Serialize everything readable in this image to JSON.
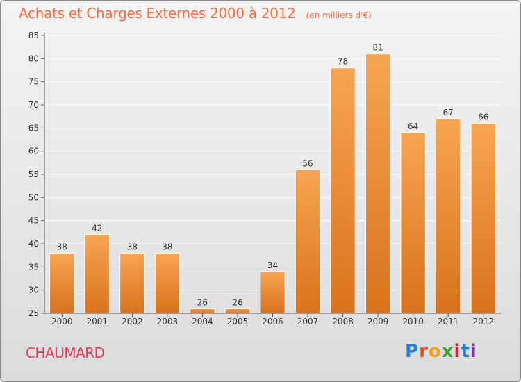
{
  "header": {
    "title": "Achats et Charges Externes 2000 à 2012",
    "unit": "(en milliers d'€)"
  },
  "footer": {
    "commune": "CHAUMARD",
    "logo_letters": [
      "P",
      "r",
      "o",
      "x",
      "i",
      "t",
      "i"
    ],
    "logo_colors": [
      "#2a7fc9",
      "#e8501f",
      "#f2a21c",
      "#3aa635",
      "#d6213a",
      "#2a7fc9",
      "#7a3aa0"
    ]
  },
  "colors": {
    "title": "#ff6a3d",
    "commune": "#e2385a",
    "bar_top": "#f7a552",
    "bar_bottom": "#d9721c",
    "grid": "#ffffff",
    "axis": "#555555"
  },
  "chart_data": {
    "type": "bar",
    "title": "Achats et Charges Externes 2000 à 2012",
    "xlabel": "",
    "ylabel": "",
    "categories": [
      "2000",
      "2001",
      "2002",
      "2003",
      "2004",
      "2005",
      "2006",
      "2007",
      "2008",
      "2009",
      "2010",
      "2011",
      "2012"
    ],
    "values": [
      38,
      42,
      38,
      38,
      26,
      26,
      34,
      56,
      78,
      81,
      64,
      67,
      66
    ],
    "ylim": [
      25,
      85
    ],
    "yticks": [
      25,
      30,
      35,
      40,
      45,
      50,
      55,
      60,
      65,
      70,
      75,
      80,
      85
    ],
    "grid": true,
    "data_labels": true
  }
}
